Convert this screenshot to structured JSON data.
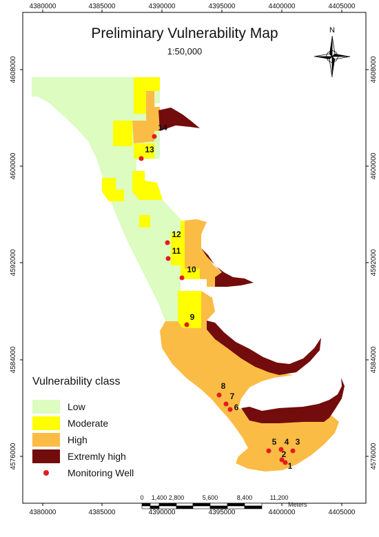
{
  "title": "Preliminary Vulnerability Map",
  "scale_text": "1:50,000",
  "north_label": "N",
  "top_ticks": [
    "4380000",
    "4385000",
    "4390000",
    "4395000",
    "4400000",
    "4405000"
  ],
  "bottom_ticks": [
    "4380000",
    "4385000",
    "4390000",
    "4395000",
    "4400000",
    "4405000"
  ],
  "left_ticks": [
    "4608000",
    "4600000",
    "4592000",
    "4584000",
    "4576000"
  ],
  "right_ticks": [
    "4608000",
    "4600000",
    "4592000",
    "4584000",
    "4576000"
  ],
  "scalebar": {
    "labels": [
      "0",
      "1,400",
      "2,800",
      "5,600",
      "8,400",
      "11,200"
    ],
    "unit": "Meters"
  },
  "legend": {
    "title": "Vulnerability class",
    "items": [
      {
        "label": "Low",
        "color": "#dcfcc0"
      },
      {
        "label": "Moderate",
        "color": "#ffff00"
      },
      {
        "label": "High",
        "color": "#fbbc45"
      },
      {
        "label": "Extremly high",
        "color": "#730c0c"
      },
      {
        "label": "Monitoring Well",
        "color": "#e31a1c"
      }
    ]
  },
  "colors": {
    "low": "#dcfcc0",
    "moderate": "#ffff00",
    "high": "#fbbc45",
    "extreme": "#730c0c",
    "well": "#e31a1c"
  },
  "wells": [
    "1",
    "2",
    "3",
    "4",
    "5",
    "6",
    "7",
    "8",
    "9",
    "10",
    "11",
    "12",
    "13",
    "14"
  ]
}
